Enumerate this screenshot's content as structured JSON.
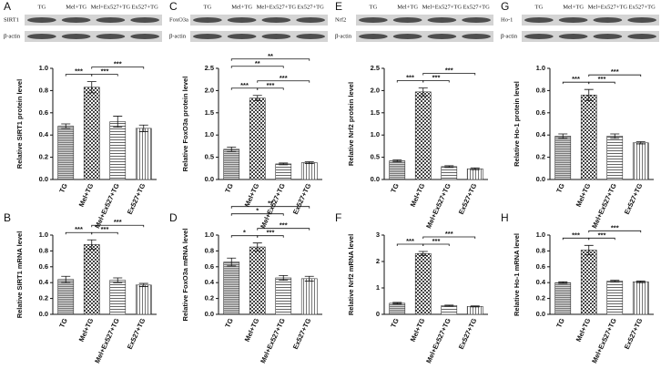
{
  "chart_data": [
    {
      "type": "bar",
      "panel": "A",
      "blot": {
        "lanes": [
          "TG",
          "Mel+TG",
          "Mel+Ex527+TG",
          "Ex527+TG"
        ],
        "rows": [
          "SIRT1",
          "β-actin"
        ]
      },
      "y_label": "Relative SIRT1 protein level",
      "categories": [
        "TG",
        "Mel+TG",
        "Mel+Ex527+TG",
        "Ex527+TG"
      ],
      "values": [
        0.48,
        0.83,
        0.52,
        0.46
      ],
      "errors": [
        0.02,
        0.05,
        0.05,
        0.03
      ],
      "ylim": [
        0,
        1
      ],
      "yticks": [
        {
          "value": 0,
          "label": "0.0"
        },
        0.2,
        0.4,
        0.6,
        0.8,
        {
          "value": 1,
          "label": "1.0"
        }
      ],
      "brackets": [
        {
          "between": [
            "TG",
            "Mel+TG"
          ],
          "label": "***"
        },
        {
          "between": [
            "Mel+TG",
            "Mel+Ex527+TG"
          ],
          "label": "***"
        },
        {
          "between": [
            "Mel+TG",
            "Ex527+TG"
          ],
          "label": "***"
        }
      ]
    },
    {
      "type": "bar",
      "panel": "B",
      "y_label": "Relative SIRT1 mRNA level",
      "categories": [
        "TG",
        "Mel+TG",
        "Mel+Ex527+TG",
        "Ex527+TG"
      ],
      "values": [
        0.44,
        0.88,
        0.43,
        0.37
      ],
      "errors": [
        0.04,
        0.06,
        0.03,
        0.02
      ],
      "ylim": [
        0,
        1
      ],
      "yticks": [
        {
          "value": 0,
          "label": "0.0"
        },
        0.2,
        0.4,
        0.6,
        0.8,
        {
          "value": 1,
          "label": "1.0"
        }
      ],
      "brackets": [
        {
          "between": [
            "TG",
            "Mel+TG"
          ],
          "label": "***"
        },
        {
          "between": [
            "Mel+TG",
            "Mel+Ex527+TG"
          ],
          "label": "***"
        },
        {
          "between": [
            "Mel+TG",
            "Ex527+TG"
          ],
          "label": "***"
        }
      ]
    },
    {
      "type": "bar",
      "panel": "C",
      "blot": {
        "lanes": [
          "TG",
          "Mel+TG",
          "Mel+Ex527+TG",
          "Ex527+TG"
        ],
        "rows": [
          "FoxO3a",
          "β-actin"
        ]
      },
      "y_label": "Relative FoxO3a protein level",
      "categories": [
        "TG",
        "Mel+TG",
        "Mel+Ex527+TG",
        "Ex527+TG"
      ],
      "values": [
        0.68,
        1.83,
        0.35,
        0.38
      ],
      "errors": [
        0.05,
        0.06,
        0.02,
        0.02
      ],
      "ylim": [
        0,
        2.5
      ],
      "yticks": [
        {
          "value": 0,
          "label": "0.0"
        },
        0.5,
        {
          "value": 1,
          "label": "1.0"
        },
        1.5,
        {
          "value": 2,
          "label": "2.0"
        },
        2.5
      ],
      "brackets": [
        {
          "between": [
            "TG",
            "Mel+TG"
          ],
          "label": "***"
        },
        {
          "between": [
            "Mel+TG",
            "Mel+Ex527+TG"
          ],
          "label": "***"
        },
        {
          "between": [
            "Mel+TG",
            "Ex527+TG"
          ],
          "label": "***"
        },
        {
          "between": [
            "TG",
            "Mel+Ex527+TG"
          ],
          "label": "**"
        },
        {
          "between": [
            "TG",
            "Ex527+TG"
          ],
          "label": "**"
        }
      ]
    },
    {
      "type": "bar",
      "panel": "D",
      "y_label": "Relative FoxO3a mRNA level",
      "categories": [
        "TG",
        "Mel+TG",
        "Mel+Ex527+TG",
        "Ex527+TG"
      ],
      "values": [
        0.66,
        0.85,
        0.46,
        0.45
      ],
      "errors": [
        0.05,
        0.05,
        0.03,
        0.03
      ],
      "ylim": [
        0,
        1
      ],
      "yticks": [
        {
          "value": 0,
          "label": "0.0"
        },
        0.2,
        0.4,
        0.6,
        0.8,
        {
          "value": 1,
          "label": "1.0"
        }
      ],
      "brackets": [
        {
          "between": [
            "TG",
            "Mel+TG"
          ],
          "label": "*"
        },
        {
          "between": [
            "Mel+TG",
            "Mel+Ex527+TG"
          ],
          "label": "***"
        },
        {
          "between": [
            "Mel+TG",
            "Ex527+TG"
          ],
          "label": "***"
        },
        {
          "between": [
            "TG",
            "Mel+Ex527+TG"
          ],
          "label": "*"
        },
        {
          "between": [
            "TG",
            "Ex527+TG"
          ],
          "label": "**"
        }
      ]
    },
    {
      "type": "bar",
      "panel": "E",
      "blot": {
        "lanes": [
          "TG",
          "Mel+TG",
          "Mel+Ex527+TG",
          "Ex527+TG"
        ],
        "rows": [
          "Nrf2",
          "β-actin"
        ]
      },
      "y_label": "Relative Nrf2 protein level",
      "categories": [
        "TG",
        "Mel+TG",
        "Mel+Ex527+TG",
        "Ex527+TG"
      ],
      "values": [
        0.42,
        1.97,
        0.29,
        0.24
      ],
      "errors": [
        0.02,
        0.09,
        0.02,
        0.02
      ],
      "ylim": [
        0,
        2.5
      ],
      "yticks": [
        {
          "value": 0,
          "label": "0.0"
        },
        0.5,
        {
          "value": 1,
          "label": "1.0"
        },
        1.5,
        {
          "value": 2,
          "label": "2.0"
        },
        2.5
      ],
      "brackets": [
        {
          "between": [
            "TG",
            "Mel+TG"
          ],
          "label": "***"
        },
        {
          "between": [
            "Mel+TG",
            "Mel+Ex527+TG"
          ],
          "label": "***"
        },
        {
          "between": [
            "Mel+TG",
            "Ex527+TG"
          ],
          "label": "***"
        }
      ]
    },
    {
      "type": "bar",
      "panel": "F",
      "y_label": "Relative Nrf2 mRNA level",
      "categories": [
        "TG",
        "Mel+TG",
        "Mel+Ex527+TG",
        "Ex527+TG"
      ],
      "values": [
        0.42,
        2.3,
        0.33,
        0.3
      ],
      "errors": [
        0.03,
        0.08,
        0.02,
        0.02
      ],
      "ylim": [
        0,
        3
      ],
      "yticks": [
        0,
        1,
        2,
        3
      ],
      "brackets": [
        {
          "between": [
            "TG",
            "Mel+TG"
          ],
          "label": "***"
        },
        {
          "between": [
            "Mel+TG",
            "Mel+Ex527+TG"
          ],
          "label": "***"
        },
        {
          "between": [
            "Mel+TG",
            "Ex527+TG"
          ],
          "label": "***"
        }
      ]
    },
    {
      "type": "bar",
      "panel": "G",
      "blot": {
        "lanes": [
          "TG",
          "Mel+TG",
          "Mel+Ex527+TG",
          "Ex527+TG"
        ],
        "rows": [
          "Ho-1",
          "β-actin"
        ]
      },
      "y_label": "Relative Ho-1 protein level",
      "categories": [
        "TG",
        "Mel+TG",
        "Mel+Ex527+TG",
        "Ex527+TG"
      ],
      "values": [
        0.39,
        0.76,
        0.39,
        0.33
      ],
      "errors": [
        0.02,
        0.05,
        0.02,
        0.01
      ],
      "ylim": [
        0,
        1
      ],
      "yticks": [
        {
          "value": 0,
          "label": "0.0"
        },
        0.2,
        0.4,
        0.6,
        0.8,
        {
          "value": 1,
          "label": "1.0"
        }
      ],
      "brackets": [
        {
          "between": [
            "TG",
            "Mel+TG"
          ],
          "label": "***"
        },
        {
          "between": [
            "Mel+TG",
            "Mel+Ex527+TG"
          ],
          "label": "***"
        },
        {
          "between": [
            "Mel+TG",
            "Ex527+TG"
          ],
          "label": "***"
        }
      ]
    },
    {
      "type": "bar",
      "panel": "H",
      "y_label": "Relative Ho-1 mRNA level",
      "categories": [
        "TG",
        "Mel+TG",
        "Mel+Ex527+TG",
        "Ex527+TG"
      ],
      "values": [
        0.4,
        0.81,
        0.42,
        0.41
      ],
      "errors": [
        0.01,
        0.06,
        0.01,
        0.01
      ],
      "ylim": [
        0,
        1
      ],
      "yticks": [
        {
          "value": 0,
          "label": "0.0"
        },
        0.2,
        0.4,
        0.6,
        0.8,
        {
          "value": 1,
          "label": "1.0"
        }
      ],
      "brackets": [
        {
          "between": [
            "TG",
            "Mel+TG"
          ],
          "label": "***"
        },
        {
          "between": [
            "Mel+TG",
            "Mel+Ex527+TG"
          ],
          "label": "***"
        },
        {
          "between": [
            "Mel+TG",
            "Ex527+TG"
          ],
          "label": "***"
        }
      ]
    }
  ]
}
